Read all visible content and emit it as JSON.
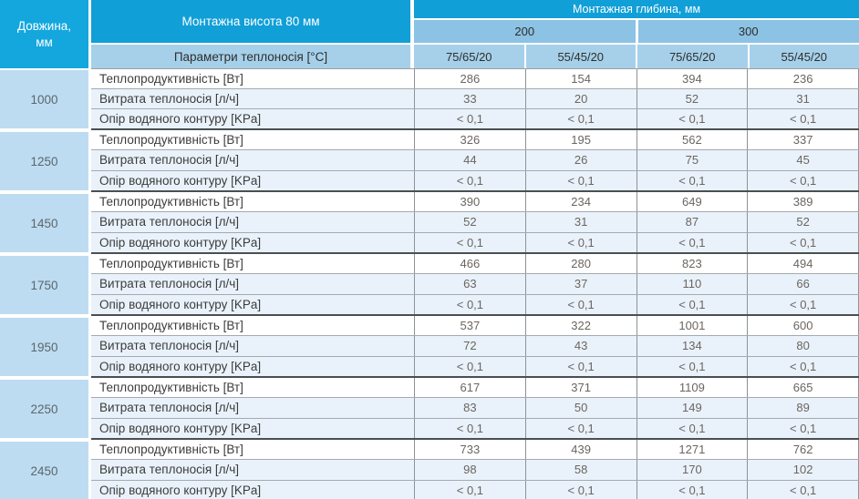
{
  "table": {
    "header": {
      "length_line1": "Довжина,",
      "length_line2": "мм",
      "mount_height": "Монтажна висота 80 мм",
      "mount_depth": "Монтажная глибина, мм",
      "params": "Параметри теплоносія [°C]",
      "depth_200": "200",
      "depth_300": "300",
      "temp_cols": [
        "75/65/20",
        "55/45/20",
        "75/65/20",
        "55/45/20"
      ]
    },
    "row_labels": [
      "Теплопродуктивність [Вт]",
      "Витрата теплоносія [л/ч]",
      "Опір водяного контуру [KPa]"
    ],
    "groups": [
      {
        "length": "1000",
        "values": [
          [
            "286",
            "154",
            "394",
            "236"
          ],
          [
            "33",
            "20",
            "52",
            "31"
          ],
          [
            "< 0,1",
            "< 0,1",
            "< 0,1",
            "< 0,1"
          ]
        ]
      },
      {
        "length": "1250",
        "values": [
          [
            "326",
            "195",
            "562",
            "337"
          ],
          [
            "44",
            "26",
            "75",
            "45"
          ],
          [
            "< 0,1",
            "< 0,1",
            "< 0,1",
            "< 0,1"
          ]
        ]
      },
      {
        "length": "1450",
        "values": [
          [
            "390",
            "234",
            "649",
            "389"
          ],
          [
            "52",
            "31",
            "87",
            "52"
          ],
          [
            "< 0,1",
            "< 0,1",
            "< 0,1",
            "< 0,1"
          ]
        ]
      },
      {
        "length": "1750",
        "values": [
          [
            "466",
            "280",
            "823",
            "494"
          ],
          [
            "63",
            "37",
            "110",
            "66"
          ],
          [
            "< 0,1",
            "< 0,1",
            "< 0,1",
            "< 0,1"
          ]
        ]
      },
      {
        "length": "1950",
        "values": [
          [
            "537",
            "322",
            "1001",
            "600"
          ],
          [
            "72",
            "43",
            "134",
            "80"
          ],
          [
            "< 0,1",
            "< 0,1",
            "< 0,1",
            "< 0,1"
          ]
        ]
      },
      {
        "length": "2250",
        "values": [
          [
            "617",
            "371",
            "1109",
            "665"
          ],
          [
            "83",
            "50",
            "149",
            "89"
          ],
          [
            "< 0,1",
            "< 0,1",
            "< 0,1",
            "< 0,1"
          ]
        ]
      },
      {
        "length": "2450",
        "values": [
          [
            "733",
            "439",
            "1271",
            "762"
          ],
          [
            "98",
            "58",
            "170",
            "102"
          ],
          [
            "< 0,1",
            "< 0,1",
            "< 0,1",
            "< 0,1"
          ]
        ]
      }
    ],
    "colors": {
      "azure_header": "#109fd7",
      "length_cell": "#13a7de",
      "depth_row": "#8cc2e3",
      "params_row": "#a6d0e9",
      "group_cell": "#bddcf1",
      "tint_row": "#e9f2fa",
      "group_border": "#4a4f52",
      "grid_line": "#8d9296"
    }
  }
}
